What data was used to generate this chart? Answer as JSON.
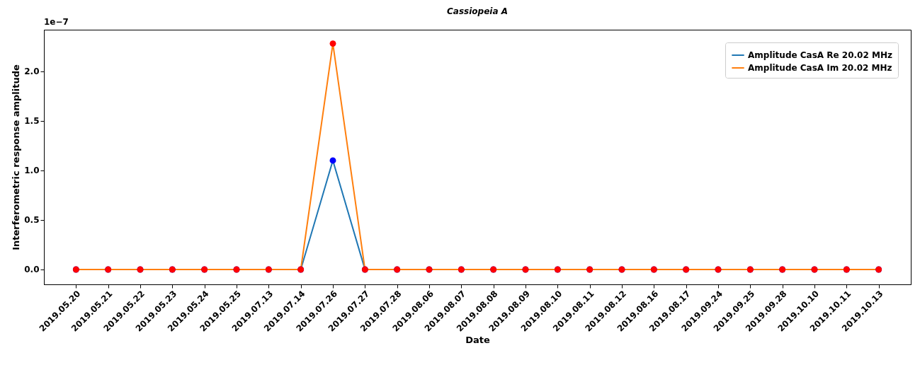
{
  "chart_data": {
    "type": "line",
    "title": "Cassiopeia A",
    "xlabel": "Date",
    "ylabel": "Interferometric response amplitude",
    "categories": [
      "2019.05.20",
      "2019.05.21",
      "2019.05.22",
      "2019.05.23",
      "2019.05.24",
      "2019.05.25",
      "2019.07.13",
      "2019.07.14",
      "2019.07.26",
      "2019.07.27",
      "2019.07.28",
      "2019.08.06",
      "2019.08.07",
      "2019.08.08",
      "2019.08.09",
      "2019.08.10",
      "2019.08.11",
      "2019.08.12",
      "2019.08.16",
      "2019.08.17",
      "2019.09.24",
      "2019.09.25",
      "2019.09.28",
      "2019.10.10",
      "2019.10.11",
      "2019.10.13"
    ],
    "series": [
      {
        "name": "Amplitude CasA Re 20.02 MHz",
        "type": "line",
        "color": "#1f77b4",
        "values": [
          null,
          null,
          null,
          null,
          null,
          null,
          null,
          0,
          1.1,
          0,
          null,
          null,
          null,
          null,
          null,
          null,
          null,
          null,
          null,
          null,
          null,
          null,
          null,
          null,
          null,
          null
        ]
      },
      {
        "name": "Amplitude CasA Im 20.02 MHz",
        "type": "line",
        "color": "#ff7f0e",
        "values": [
          0,
          0,
          0,
          0,
          0,
          0,
          0,
          0,
          2.28,
          0,
          0,
          0,
          0,
          0,
          0,
          0,
          0,
          0,
          0,
          0,
          0,
          0,
          0,
          0,
          0,
          0
        ]
      },
      {
        "type": "scatter",
        "color": "#0000ff",
        "values": [
          0,
          0,
          0,
          0,
          0,
          0,
          0,
          0,
          1.1,
          0,
          0,
          0,
          0,
          0,
          0,
          0,
          0,
          0,
          0,
          0,
          0,
          0,
          0,
          0,
          0,
          0
        ]
      },
      {
        "type": "scatter",
        "color": "#ff0000",
        "values": [
          0,
          0,
          0,
          0,
          0,
          0,
          0,
          0,
          2.28,
          0,
          0,
          0,
          0,
          0,
          0,
          0,
          0,
          0,
          0,
          0,
          0,
          0,
          0,
          0,
          0,
          0
        ]
      }
    ],
    "ylim": [
      -0.15,
      2.42
    ],
    "yticks": [
      {
        "value": 0,
        "label": "0.0"
      },
      {
        "value": 0.5,
        "label": "0.5"
      },
      {
        "value": 1,
        "label": "1.0"
      },
      {
        "value": 1.5,
        "label": "1.5"
      },
      {
        "value": 2,
        "label": "2.0"
      }
    ],
    "annotations": [
      "1e−7"
    ],
    "legend": "top right",
    "grid": false
  }
}
